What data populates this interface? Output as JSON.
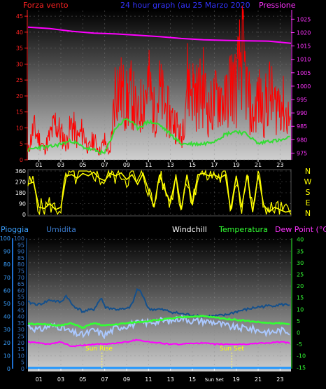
{
  "header": {
    "left_label": "Forza vento",
    "center_label": "24 hour graph (au   25 Marzo 2020",
    "right_label": "Pressione"
  },
  "colors": {
    "wind": "#ff0000",
    "wind_avg": "#33dd33",
    "pressure": "#ff00ff",
    "direction": "#ffff00",
    "temperature": "#33ff33",
    "humidity": "#14508c",
    "windchill": "#aac8ff",
    "dewpoint": "#ff00ff",
    "rain": "#1e96ff",
    "left_axis_text": "#ff2222",
    "right_axis_text": "#ff33ff",
    "dir_axis_text": "#ffff00",
    "rain_axis_text": "#3aa0ff",
    "humid_axis_text": "#3a7acc",
    "temp_axis_text": "#33ff33",
    "header_center": "#3333ff"
  },
  "legend_bottom": {
    "pioggia": "Pioggia",
    "umidita": "Umidita",
    "windchill": "Windchill",
    "temperatura": "Temperatura",
    "dewpoint": "Dew Point (°C)"
  },
  "annotations": {
    "sun_rise": "Sun Rise",
    "sun_set": "Sun Set"
  },
  "x_ticks": [
    "01",
    "03",
    "05",
    "07",
    "09",
    "11",
    "13",
    "15",
    "17",
    "19",
    "21",
    "23"
  ],
  "x_ticks_bottom": [
    "01",
    "03",
    "05",
    "07",
    "09",
    "11",
    "13",
    "15",
    "Sun Set",
    "19",
    "21",
    "23"
  ],
  "compass": [
    "N",
    "W",
    "S",
    "E",
    "N"
  ],
  "chart_data": [
    {
      "type": "line",
      "name": "wind_pressure",
      "wind_axis": [
        0,
        5,
        10,
        15,
        20,
        25,
        30,
        35,
        40,
        45
      ],
      "pressure_axis": [
        975,
        980,
        985,
        990,
        995,
        1000,
        1005,
        1010,
        1015,
        1020,
        1025
      ],
      "ylim_wind": [
        0,
        47
      ],
      "ylim_pressure": [
        972.5,
        1028.5
      ],
      "xlim_hours": [
        0,
        24
      ],
      "wind_gust_profile": [
        [
          0,
          3
        ],
        [
          0.5,
          12
        ],
        [
          1,
          8
        ],
        [
          1.5,
          4
        ],
        [
          2,
          9
        ],
        [
          2.5,
          14
        ],
        [
          3,
          10
        ],
        [
          3.5,
          6
        ],
        [
          4,
          14
        ],
        [
          4.5,
          8
        ],
        [
          5,
          11
        ],
        [
          5.5,
          4
        ],
        [
          6,
          8
        ],
        [
          6.5,
          3
        ],
        [
          7,
          7
        ],
        [
          7.5,
          2
        ],
        [
          8,
          30
        ],
        [
          8.5,
          26
        ],
        [
          9,
          22
        ],
        [
          9.5,
          25
        ],
        [
          10,
          15
        ],
        [
          10.5,
          24
        ],
        [
          11,
          29
        ],
        [
          11.5,
          18
        ],
        [
          12,
          26
        ],
        [
          12.5,
          20
        ],
        [
          13,
          16
        ],
        [
          13.5,
          14
        ],
        [
          14,
          8
        ],
        [
          14.5,
          30
        ],
        [
          15,
          27
        ],
        [
          15.5,
          24
        ],
        [
          16,
          28
        ],
        [
          16.5,
          18
        ],
        [
          17,
          22
        ],
        [
          17.5,
          25
        ],
        [
          18,
          21
        ],
        [
          18.5,
          30
        ],
        [
          19,
          27
        ],
        [
          19.5,
          41
        ],
        [
          20,
          26
        ],
        [
          20.5,
          15
        ],
        [
          21,
          24
        ],
        [
          21.5,
          18
        ],
        [
          22,
          26
        ],
        [
          22.5,
          20
        ],
        [
          23,
          24
        ],
        [
          23.5,
          18
        ],
        [
          24,
          15
        ]
      ],
      "wind_avg": [
        [
          0,
          3
        ],
        [
          1,
          4
        ],
        [
          2,
          4
        ],
        [
          3,
          5
        ],
        [
          4,
          6
        ],
        [
          5,
          4
        ],
        [
          6,
          3
        ],
        [
          7,
          2
        ],
        [
          8,
          10
        ],
        [
          9,
          13
        ],
        [
          10,
          10
        ],
        [
          11,
          12
        ],
        [
          12,
          11
        ],
        [
          13,
          8
        ],
        [
          14,
          5
        ],
        [
          15,
          5
        ],
        [
          16,
          5
        ],
        [
          17,
          6
        ],
        [
          18,
          8
        ],
        [
          19,
          9
        ],
        [
          20,
          8
        ],
        [
          21,
          5
        ],
        [
          22,
          6
        ],
        [
          23,
          6
        ],
        [
          24,
          7
        ]
      ],
      "pressure": [
        [
          0,
          1022
        ],
        [
          2,
          1021.5
        ],
        [
          4,
          1020.5
        ],
        [
          6,
          1019.8
        ],
        [
          8,
          1019.5
        ],
        [
          10,
          1019
        ],
        [
          12,
          1018.5
        ],
        [
          14,
          1017.8
        ],
        [
          16,
          1017.3
        ],
        [
          18,
          1017.1
        ],
        [
          20,
          1016.9
        ],
        [
          22,
          1016.8
        ],
        [
          24,
          1016.0
        ]
      ]
    },
    {
      "type": "line",
      "name": "wind_direction",
      "y_axis": [
        0,
        90,
        180,
        270,
        360
      ],
      "ylim": [
        0,
        360
      ],
      "xlim_hours": [
        0,
        24
      ],
      "segments": [
        [
          [
            0,
            250
          ],
          [
            0.5,
            270
          ],
          [
            1,
            60
          ],
          [
            1.5,
            50
          ],
          [
            2,
            90
          ],
          [
            2.5,
            40
          ],
          [
            3,
            60
          ],
          [
            3.5,
            320
          ],
          [
            4,
            330
          ],
          [
            4.5,
            300
          ],
          [
            5,
            340
          ],
          [
            5.5,
            320
          ],
          [
            6,
            350
          ],
          [
            6.5,
            300
          ],
          [
            7,
            280
          ],
          [
            7.5,
            340
          ],
          [
            8,
            320
          ],
          [
            8.5,
            345
          ],
          [
            9,
            290
          ],
          [
            9.5,
            330
          ],
          [
            10,
            250
          ],
          [
            10.5,
            340
          ],
          [
            11,
            200
          ],
          [
            11.5,
            60
          ],
          [
            12,
            330
          ],
          [
            12.5,
            200
          ],
          [
            13,
            100
          ],
          [
            13.5,
            320
          ],
          [
            14,
            40
          ],
          [
            14.5,
            330
          ],
          [
            15,
            80
          ],
          [
            15.5,
            330
          ],
          [
            16,
            340
          ],
          [
            16.5,
            320
          ],
          [
            17,
            330
          ],
          [
            17.5,
            300
          ],
          [
            18,
            330
          ],
          [
            18.5,
            40
          ],
          [
            19,
            320
          ],
          [
            19.5,
            60
          ],
          [
            20,
            330
          ],
          [
            20.5,
            20
          ],
          [
            21,
            330
          ],
          [
            21.5,
            80
          ],
          [
            22,
            20
          ],
          [
            22.5,
            60
          ],
          [
            23,
            40
          ],
          [
            23.5,
            20
          ],
          [
            24,
            30
          ]
        ]
      ]
    },
    {
      "type": "line",
      "name": "weather",
      "rain_axis": [
        0,
        10,
        20,
        30,
        40,
        50,
        60,
        70,
        80,
        90,
        100
      ],
      "humidity_axis": [
        0,
        5,
        10,
        15,
        20,
        25,
        30,
        35,
        40,
        45,
        50,
        55,
        60,
        65,
        70,
        75,
        80,
        85,
        90,
        95,
        100
      ],
      "temp_axis": [
        40,
        35,
        30,
        25,
        20,
        15,
        10,
        5,
        0,
        -5,
        -10,
        -15
      ],
      "ylim_temp": [
        -15.5,
        40.5
      ],
      "xlim_hours": [
        0,
        24
      ],
      "humidity_temp_scale": [
        [
          0,
          13
        ],
        [
          1,
          12
        ],
        [
          2,
          14
        ],
        [
          3,
          13
        ],
        [
          3.5,
          16
        ],
        [
          4,
          12
        ],
        [
          5,
          9
        ],
        [
          6,
          10
        ],
        [
          6.7,
          15
        ],
        [
          7,
          11
        ],
        [
          8,
          10
        ],
        [
          9,
          10
        ],
        [
          9.5,
          12
        ],
        [
          10,
          19
        ],
        [
          10.5,
          16
        ],
        [
          11,
          10
        ],
        [
          12,
          10
        ],
        [
          13,
          9
        ],
        [
          14,
          8
        ],
        [
          15,
          7.5
        ],
        [
          16,
          7
        ],
        [
          17,
          7
        ],
        [
          18,
          7.5
        ],
        [
          19,
          9
        ],
        [
          20,
          10
        ],
        [
          21,
          11
        ],
        [
          22,
          11.5
        ],
        [
          23,
          12
        ],
        [
          24,
          12
        ]
      ],
      "temperature": [
        [
          0,
          4
        ],
        [
          1,
          3.5
        ],
        [
          2,
          3.5
        ],
        [
          3,
          3
        ],
        [
          4,
          4
        ],
        [
          5,
          2
        ],
        [
          6,
          4
        ],
        [
          7,
          3
        ],
        [
          8,
          3.5
        ],
        [
          9,
          4
        ],
        [
          10,
          4.5
        ],
        [
          11,
          5
        ],
        [
          12,
          5.5
        ],
        [
          13,
          6
        ],
        [
          14,
          6.5
        ],
        [
          15,
          7
        ],
        [
          16,
          7
        ],
        [
          17,
          6.5
        ],
        [
          18,
          6
        ],
        [
          19,
          5.5
        ],
        [
          20,
          5
        ],
        [
          21,
          4.5
        ],
        [
          22,
          4
        ],
        [
          23,
          4
        ],
        [
          24,
          3.5
        ]
      ],
      "windchill": [
        [
          0,
          3
        ],
        [
          1,
          1
        ],
        [
          2,
          3
        ],
        [
          3,
          2.5
        ],
        [
          4,
          0
        ],
        [
          5,
          -1
        ],
        [
          6,
          1
        ],
        [
          7,
          -1
        ],
        [
          8,
          2
        ],
        [
          9,
          3
        ],
        [
          10,
          4
        ],
        [
          11,
          4.5
        ],
        [
          12,
          5
        ],
        [
          13,
          5
        ],
        [
          14,
          6.5
        ],
        [
          15,
          5
        ],
        [
          16,
          5
        ],
        [
          17,
          4.5
        ],
        [
          18,
          3
        ],
        [
          19,
          2
        ],
        [
          20,
          2
        ],
        [
          21,
          1
        ],
        [
          22,
          0
        ],
        [
          23,
          1
        ],
        [
          24,
          0.5
        ]
      ],
      "dew_point": [
        [
          0,
          -4
        ],
        [
          1,
          -4.5
        ],
        [
          2,
          -5
        ],
        [
          3,
          -4
        ],
        [
          4,
          -6
        ],
        [
          5,
          -5.5
        ],
        [
          6,
          -5
        ],
        [
          7,
          -5
        ],
        [
          8,
          -4.5
        ],
        [
          9,
          -4
        ],
        [
          10,
          -3
        ],
        [
          11,
          -4
        ],
        [
          12,
          -4.5
        ],
        [
          13,
          -5
        ],
        [
          14,
          -5
        ],
        [
          15,
          -4.5
        ],
        [
          16,
          -4.5
        ],
        [
          17,
          -5
        ],
        [
          18,
          -5
        ],
        [
          19,
          -5
        ],
        [
          20,
          -5
        ],
        [
          21,
          -4.5
        ],
        [
          22,
          -4.5
        ],
        [
          23,
          -4
        ],
        [
          24,
          -4.5
        ]
      ],
      "rain_total": 0,
      "sun_rise_hour": 6.75,
      "sun_set_hour": 18.6
    }
  ]
}
